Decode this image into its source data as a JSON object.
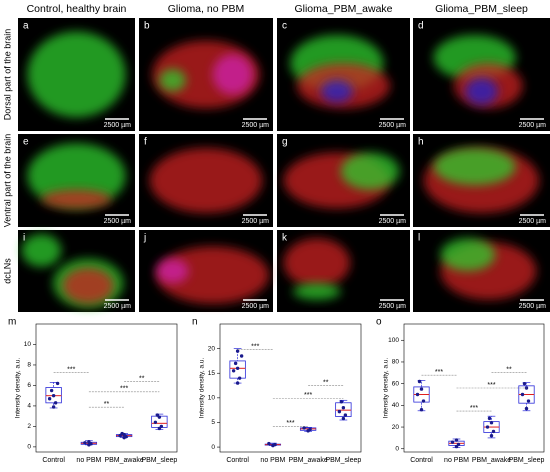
{
  "column_headers": [
    "Control, healthy brain",
    "Glioma, no PBM",
    "Glioma_PBM_awake",
    "Glioma_PBM_sleep"
  ],
  "row_labels": [
    "Dorsal part of the brain",
    "Ventral part of the brain",
    "dcLNs"
  ],
  "panels": [
    {
      "label": "a",
      "scale_bar": "2500 µm"
    },
    {
      "label": "b",
      "scale_bar": "2500 µm"
    },
    {
      "label": "c",
      "scale_bar": "2500 µm"
    },
    {
      "label": "d",
      "scale_bar": "2500 µm"
    },
    {
      "label": "e",
      "scale_bar": "2500 µm"
    },
    {
      "label": "f",
      "scale_bar": "2500 µm"
    },
    {
      "label": "g",
      "scale_bar": "2500 µm"
    },
    {
      "label": "h",
      "scale_bar": "2500 µm"
    },
    {
      "label": "i",
      "scale_bar": "2500 µm"
    },
    {
      "label": "j",
      "scale_bar": "2500 µm"
    },
    {
      "label": "k",
      "scale_bar": "2500 µm"
    },
    {
      "label": "l",
      "scale_bar": "2500 µm"
    }
  ],
  "chart_data": [
    {
      "type": "box",
      "label": "m",
      "ylabel": "Intensity density, a.u.",
      "categories": [
        "Control",
        "no PBM",
        "PBM_awake",
        "PBM_sleep"
      ],
      "ylim": [
        -0.5,
        12
      ],
      "yticks": [
        0,
        2,
        4,
        6,
        8,
        10
      ],
      "color": "#2b2bd9",
      "median_color": "#e02020",
      "point_color": "#1a1a8c",
      "boxes": [
        {
          "min": 3.8,
          "q1": 4.3,
          "median": 5.0,
          "q3": 5.8,
          "max": 6.3,
          "points": [
            3.9,
            4.3,
            4.7,
            5.0,
            5.5,
            6.2
          ]
        },
        {
          "min": 0.2,
          "q1": 0.25,
          "median": 0.35,
          "q3": 0.45,
          "max": 0.6,
          "points": [
            0.2,
            0.3,
            0.4,
            0.5
          ]
        },
        {
          "min": 0.9,
          "q1": 1.0,
          "median": 1.1,
          "q3": 1.2,
          "max": 1.3,
          "points": [
            0.9,
            1.0,
            1.1,
            1.2,
            1.3
          ]
        },
        {
          "min": 1.7,
          "q1": 1.9,
          "median": 2.3,
          "q3": 3.0,
          "max": 3.2,
          "points": [
            1.8,
            2.0,
            2.4,
            2.9,
            3.1
          ]
        }
      ],
      "significance": [
        "***",
        "**",
        "***",
        "**"
      ]
    },
    {
      "type": "box",
      "label": "n",
      "ylabel": "Intensity density, a.u.",
      "categories": [
        "Control",
        "no PBM",
        "PBM_awake",
        "PBM_sleep"
      ],
      "ylim": [
        -1,
        25
      ],
      "yticks": [
        0,
        5,
        10,
        15,
        20
      ],
      "color": "#2b2bd9",
      "median_color": "#e02020",
      "point_color": "#1a1a8c",
      "boxes": [
        {
          "min": 13,
          "q1": 14,
          "median": 16,
          "q3": 17.5,
          "max": 20,
          "points": [
            13,
            14,
            15.5,
            16,
            17,
            18.5,
            19.5
          ]
        },
        {
          "min": 0.3,
          "q1": 0.4,
          "median": 0.5,
          "q3": 0.6,
          "max": 0.8,
          "points": [
            0.3,
            0.5,
            0.7
          ]
        },
        {
          "min": 3.2,
          "q1": 3.4,
          "median": 3.7,
          "q3": 3.9,
          "max": 4.0,
          "points": [
            3.3,
            3.6,
            3.9
          ]
        },
        {
          "min": 5.5,
          "q1": 6.2,
          "median": 7.5,
          "q3": 9,
          "max": 9.5,
          "points": [
            5.8,
            6.5,
            7.2,
            8.0,
            9.2
          ]
        }
      ],
      "significance": [
        "***",
        "***",
        "***",
        "**"
      ]
    },
    {
      "type": "box",
      "label": "o",
      "ylabel": "Intensity density, a.u.",
      "categories": [
        "Control",
        "no PBM",
        "PBM_awake",
        "PBM_sleep"
      ],
      "ylim": [
        -3,
        115
      ],
      "yticks": [
        0,
        20,
        40,
        60,
        80,
        100
      ],
      "color": "#2b2bd9",
      "median_color": "#e02020",
      "point_color": "#1a1a8c",
      "boxes": [
        {
          "min": 35,
          "q1": 43,
          "median": 50,
          "q3": 57,
          "max": 63,
          "points": [
            36,
            44,
            50,
            55,
            62
          ]
        },
        {
          "min": 1,
          "q1": 3,
          "median": 5,
          "q3": 7,
          "max": 9,
          "points": [
            2,
            4,
            6,
            8
          ]
        },
        {
          "min": 10,
          "q1": 15,
          "median": 20,
          "q3": 25,
          "max": 30,
          "points": [
            12,
            16,
            20,
            24,
            28
          ]
        },
        {
          "min": 35,
          "q1": 42,
          "median": 50,
          "q3": 58,
          "max": 61,
          "points": [
            37,
            44,
            50,
            56,
            60
          ]
        }
      ],
      "significance": [
        "***",
        "***",
        "***",
        "**"
      ]
    }
  ]
}
